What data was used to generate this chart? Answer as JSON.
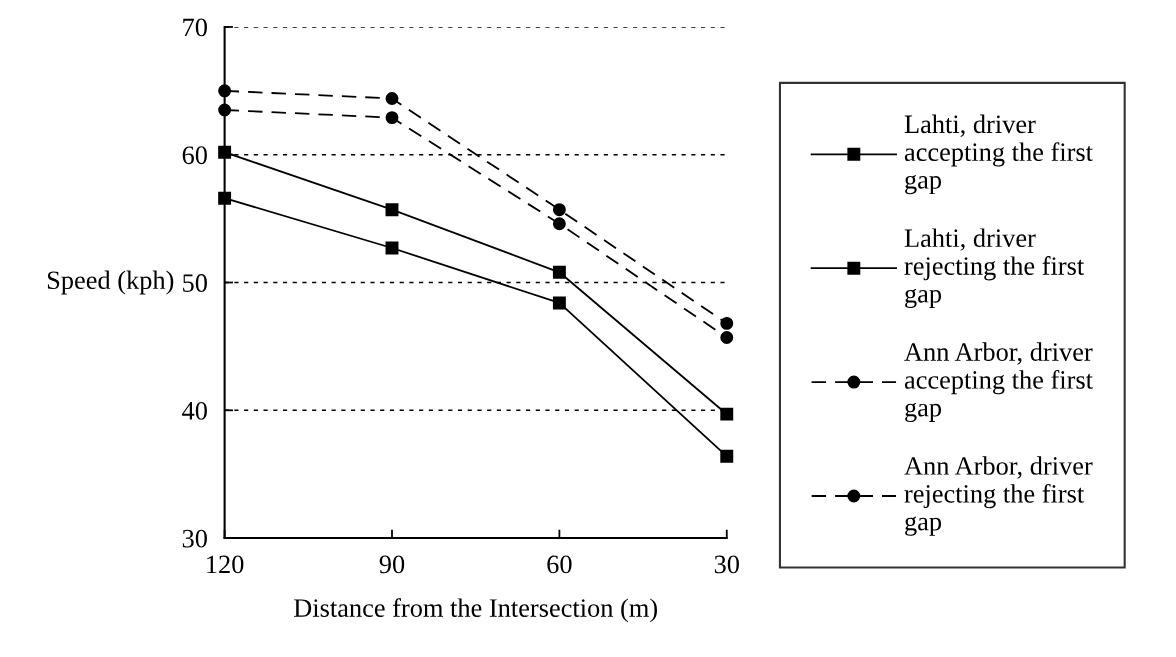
{
  "chart_data": {
    "type": "line",
    "xlabel": "Distance from the Intersection (m)",
    "ylabel": "Speed (kph)",
    "x": [
      120,
      90,
      60,
      30
    ],
    "xlim": [
      120,
      30
    ],
    "xticks": [
      120,
      90,
      60,
      30
    ],
    "ylim": [
      30,
      70
    ],
    "yticks": [
      30,
      40,
      50,
      60,
      70
    ],
    "grid": "y",
    "legend": "right",
    "series": [
      {
        "name": "Lahti, driver accepting the first gap",
        "color": "#000000",
        "marker": "square",
        "line_style": "solid",
        "values": [
          60.2,
          55.7,
          50.8,
          39.7
        ]
      },
      {
        "name": "Lahti, driver rejecting the first gap",
        "color": "#000000",
        "marker": "square",
        "line_style": "solid",
        "values": [
          56.6,
          52.7,
          48.4,
          36.4
        ]
      },
      {
        "name": "Ann Arbor, driver accepting the first gap",
        "color": "#000000",
        "marker": "circle",
        "line_style": "dashed",
        "values": [
          65.0,
          64.4,
          55.7,
          46.8
        ]
      },
      {
        "name": "Ann Arbor, driver rejecting the first gap",
        "color": "#000000",
        "marker": "circle",
        "line_style": "dashed",
        "values": [
          63.5,
          62.9,
          54.6,
          45.7
        ]
      }
    ]
  }
}
